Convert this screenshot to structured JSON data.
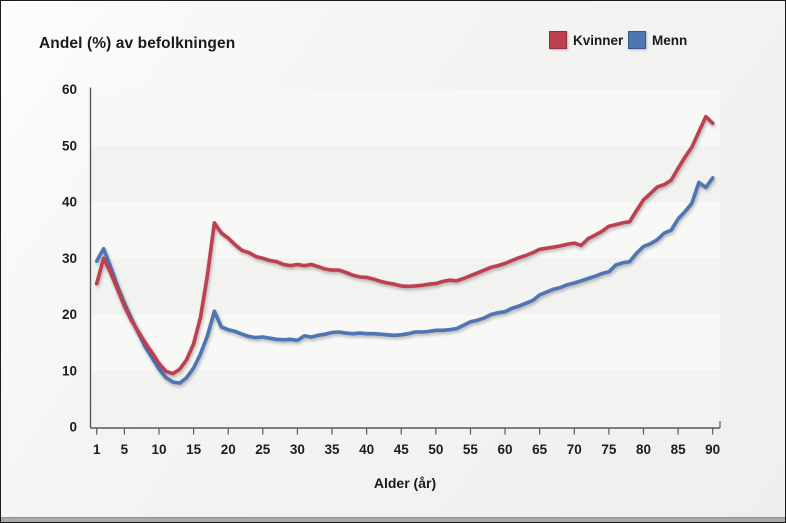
{
  "header": {
    "title": "Andel (%) av befolkningen"
  },
  "legend": {
    "position": "top-right",
    "items": [
      {
        "label": "Kvinner",
        "color": "#be4050",
        "border": "#93303e"
      },
      {
        "label": "Menn",
        "color": "#4d76b3",
        "border": "#3a5a8c"
      }
    ]
  },
  "chart_data": {
    "type": "line",
    "title": "Andel (%) av befolkningen",
    "xlabel": "Alder (år)",
    "ylabel": "Andel (%) av befolkningen",
    "xlim": [
      0,
      91
    ],
    "ylim": [
      0,
      60
    ],
    "x_ticks": [
      1,
      5,
      10,
      15,
      20,
      25,
      30,
      35,
      40,
      45,
      50,
      55,
      60,
      65,
      70,
      75,
      80,
      85,
      90
    ],
    "y_ticks": [
      0,
      10,
      20,
      30,
      40,
      50,
      60
    ],
    "grid": "alternating horizontal bands every 10 units",
    "band_colors": {
      "dark": "#f2f2f1",
      "light": "#f8f8f7"
    },
    "legend_position": "top-right",
    "x": [
      1,
      2,
      3,
      4,
      5,
      6,
      7,
      8,
      9,
      10,
      11,
      12,
      13,
      14,
      15,
      16,
      17,
      18,
      19,
      20,
      21,
      22,
      23,
      24,
      25,
      26,
      27,
      28,
      29,
      30,
      31,
      32,
      33,
      34,
      35,
      36,
      37,
      38,
      39,
      40,
      41,
      42,
      43,
      44,
      45,
      46,
      47,
      48,
      49,
      50,
      51,
      52,
      53,
      54,
      55,
      56,
      57,
      58,
      59,
      60,
      61,
      62,
      63,
      64,
      65,
      66,
      67,
      68,
      69,
      70,
      71,
      72,
      73,
      74,
      75,
      76,
      77,
      78,
      79,
      80,
      81,
      82,
      83,
      84,
      85,
      86,
      87,
      88,
      89,
      90
    ],
    "series": [
      {
        "name": "Kvinner",
        "color": "#be4050",
        "values": [
          25.5,
          30.0,
          27.5,
          24.5,
          21.5,
          19.0,
          17.0,
          15.0,
          13.2,
          11.3,
          9.9,
          9.5,
          10.3,
          12.0,
          14.8,
          19.5,
          27.0,
          36.3,
          34.5,
          33.6,
          32.4,
          31.4,
          31.0,
          30.3,
          30.0,
          29.6,
          29.4,
          28.9,
          28.7,
          28.9,
          28.7,
          28.9,
          28.5,
          28.1,
          27.9,
          27.9,
          27.5,
          27.0,
          26.7,
          26.6,
          26.3,
          25.9,
          25.6,
          25.4,
          25.1,
          25.0,
          25.1,
          25.2,
          25.4,
          25.5,
          25.9,
          26.1,
          26.0,
          26.4,
          26.9,
          27.4,
          27.9,
          28.4,
          28.7,
          29.1,
          29.6,
          30.1,
          30.5,
          31.0,
          31.6,
          31.8,
          32.0,
          32.2,
          32.5,
          32.7,
          32.3,
          33.5,
          34.1,
          34.8,
          35.7,
          36.0,
          36.3,
          36.5,
          38.5,
          40.4,
          41.5,
          42.7,
          43.1,
          43.9,
          46.0,
          48.0,
          49.8,
          52.5,
          55.2,
          54.0
        ]
      },
      {
        "name": "Menn",
        "color": "#4d76b3",
        "values": [
          29.5,
          31.7,
          28.5,
          25.0,
          22.0,
          19.3,
          16.8,
          14.3,
          12.3,
          10.3,
          8.8,
          8.0,
          7.8,
          8.8,
          10.5,
          13.0,
          16.2,
          20.6,
          17.8,
          17.3,
          17.0,
          16.5,
          16.1,
          15.9,
          16.0,
          15.8,
          15.6,
          15.5,
          15.6,
          15.4,
          16.2,
          16.0,
          16.3,
          16.5,
          16.8,
          16.9,
          16.7,
          16.6,
          16.7,
          16.6,
          16.6,
          16.5,
          16.4,
          16.3,
          16.4,
          16.6,
          16.9,
          16.9,
          17.0,
          17.2,
          17.2,
          17.3,
          17.5,
          18.1,
          18.7,
          19.0,
          19.4,
          20.0,
          20.3,
          20.5,
          21.1,
          21.5,
          22.0,
          22.5,
          23.5,
          24.0,
          24.5,
          24.8,
          25.3,
          25.6,
          26.0,
          26.4,
          26.8,
          27.3,
          27.6,
          28.8,
          29.2,
          29.4,
          30.9,
          32.1,
          32.6,
          33.3,
          34.5,
          35.0,
          37.0,
          38.3,
          39.8,
          43.5,
          42.6,
          44.3
        ]
      }
    ]
  }
}
